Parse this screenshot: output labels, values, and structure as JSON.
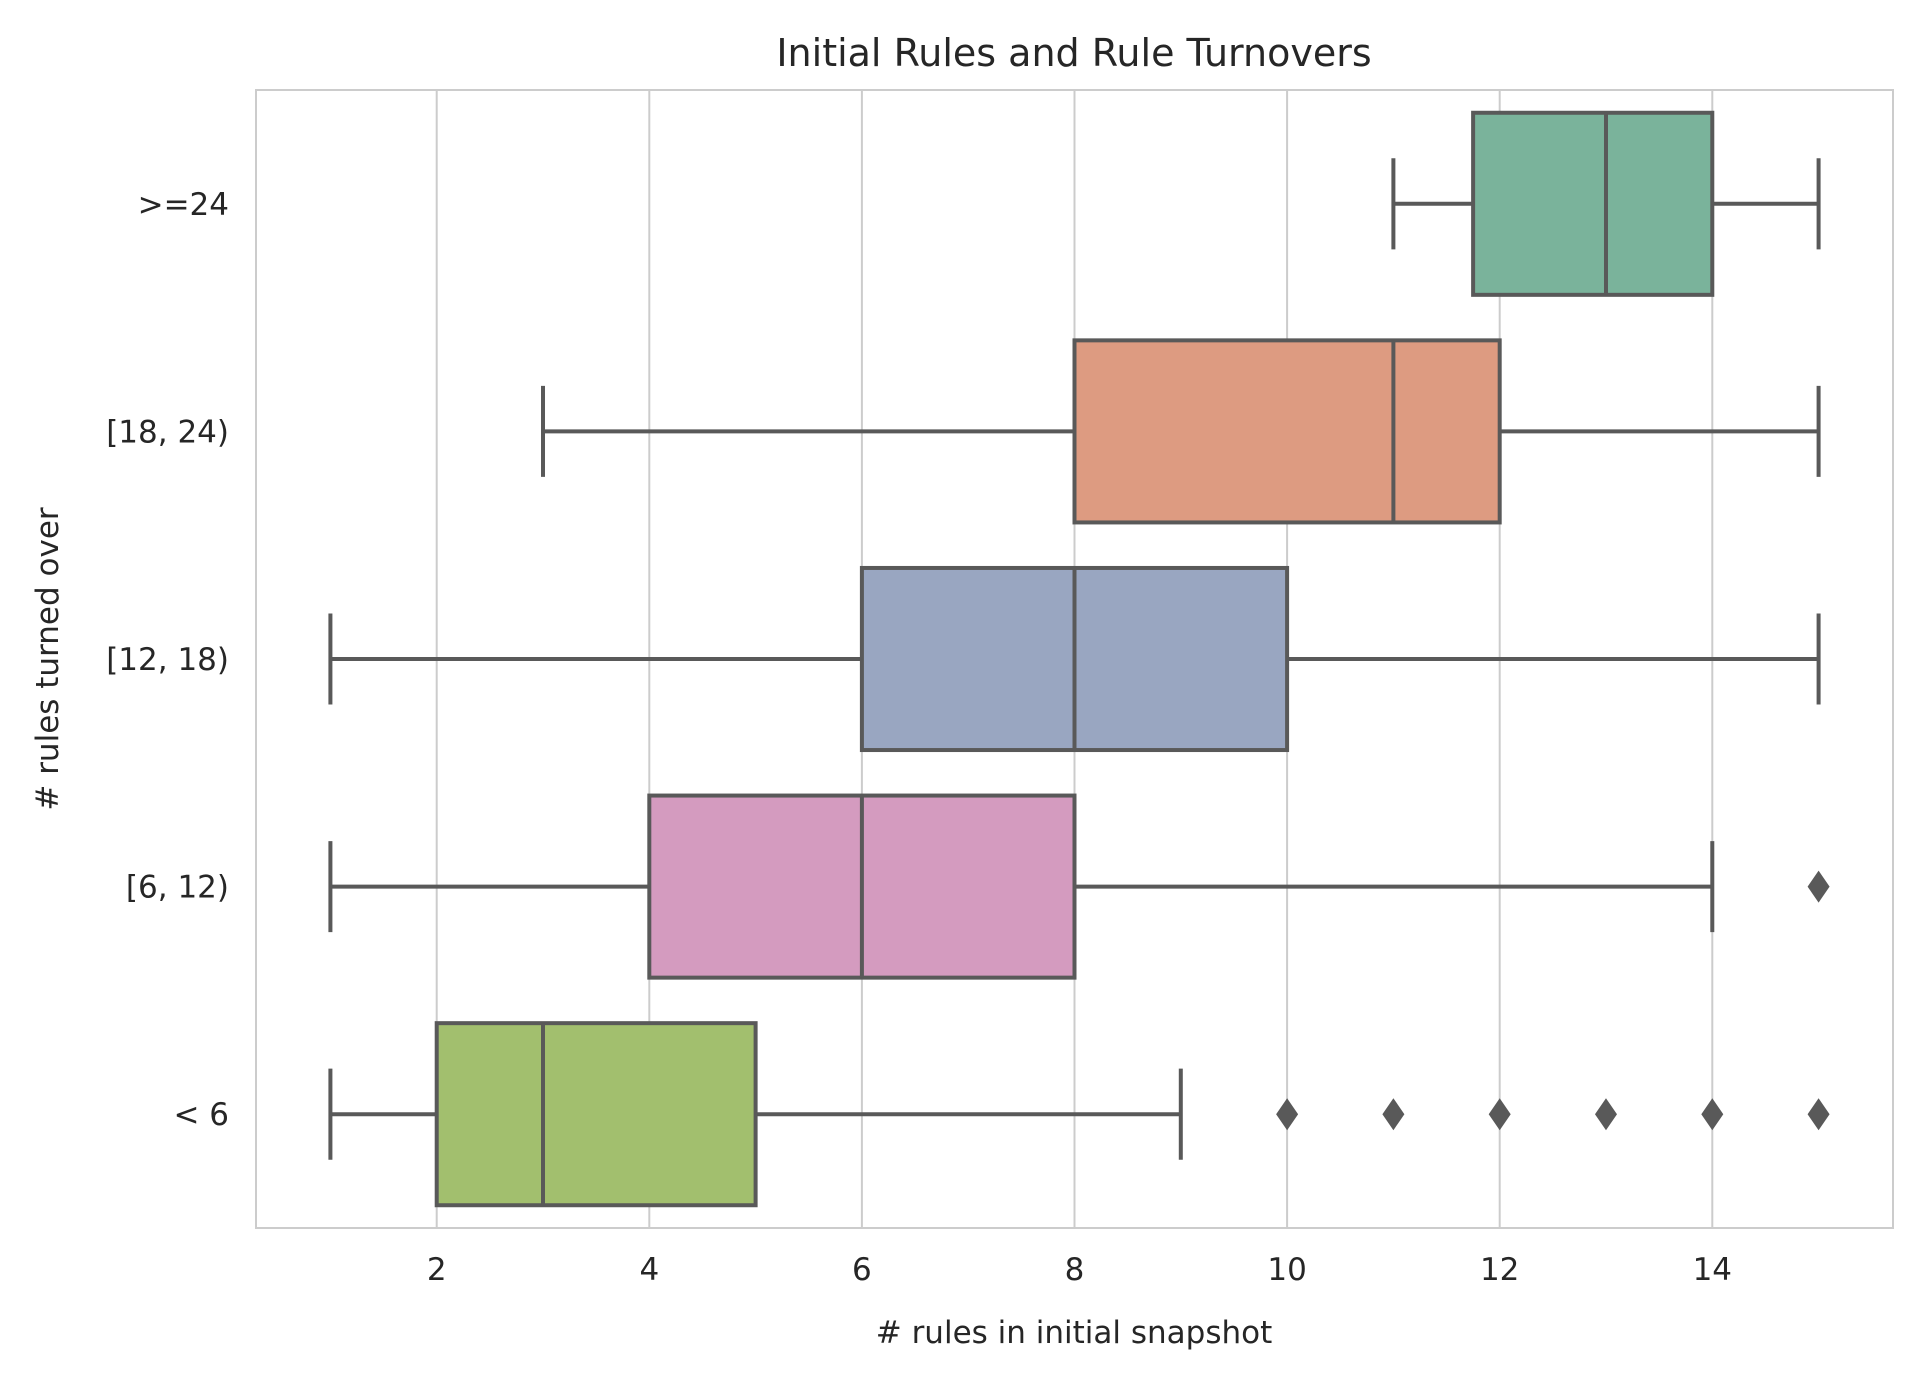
{
  "chart_data": {
    "type": "boxplot",
    "orientation": "horizontal",
    "title": "Initial Rules and Rule Turnovers",
    "xlabel": "# rules in initial snapshot",
    "ylabel": "# rules turned over",
    "xlim": [
      0.3,
      15.7
    ],
    "xticks": [
      2,
      4,
      6,
      8,
      10,
      12,
      14
    ],
    "grid": "vertical",
    "legend": "none",
    "categories": [
      ">=24",
      "[18, 24)",
      "[12, 18)",
      "[6, 12)",
      "< 6"
    ],
    "boxes": [
      {
        "category": ">=24",
        "whisker_low": 11,
        "q1": 11.75,
        "median": 13,
        "q3": 14,
        "whisker_high": 15,
        "outliers": [],
        "color": "#7ab39b"
      },
      {
        "category": "[18, 24)",
        "whisker_low": 3,
        "q1": 8,
        "median": 11,
        "q3": 12,
        "whisker_high": 15,
        "outliers": [],
        "color": "#dd9b81"
      },
      {
        "category": "[12, 18)",
        "whisker_low": 1,
        "q1": 6,
        "median": 8,
        "q3": 10,
        "whisker_high": 15,
        "outliers": [],
        "color": "#99a6c1"
      },
      {
        "category": "[6, 12)",
        "whisker_low": 1,
        "q1": 4,
        "median": 6,
        "q3": 8,
        "whisker_high": 14,
        "outliers": [
          15
        ],
        "color": "#d49bbf"
      },
      {
        "category": "< 6",
        "whisker_low": 1,
        "q1": 2,
        "median": 3,
        "q3": 5,
        "whisker_high": 9,
        "outliers": [
          10,
          11,
          12,
          13,
          14,
          15
        ],
        "color": "#a2bf6e"
      }
    ],
    "line_color": "#595959",
    "grid_color": "#cccccc"
  }
}
